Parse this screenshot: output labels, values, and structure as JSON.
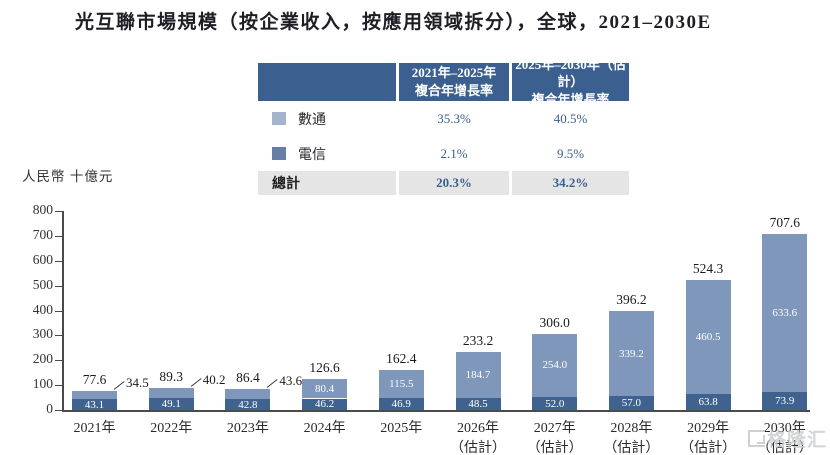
{
  "title": "光互聯市場規模（按企業收入，按應用領域拆分），全球，2021–2030E",
  "table": {
    "col_headers": [
      "2021年–2025年\n複合年增長率",
      "2025年–2030年（估計）\n複合年增長率"
    ],
    "rows": [
      {
        "label": "數通",
        "swatch_color": "#a4b4ce",
        "values": [
          "35.3%",
          "40.5%"
        ]
      },
      {
        "label": "電信",
        "swatch_color": "#667fa9",
        "values": [
          "2.1%",
          "9.5%"
        ]
      }
    ],
    "total_row": {
      "label": "總計",
      "values": [
        "20.3%",
        "34.2%"
      ]
    }
  },
  "chart_data": {
    "type": "bar",
    "stacked": true,
    "title": "光互聯市場規模（按企業收入，按應用領域拆分），全球，2021–2030E",
    "ylabel": "人民幣 十億元",
    "ylim": [
      0,
      800
    ],
    "yticks": [
      0,
      100,
      200,
      300,
      400,
      500,
      600,
      700,
      800
    ],
    "grid": false,
    "legend_position": "table-top",
    "categories": [
      "2021年",
      "2022年",
      "2023年",
      "2024年",
      "2025年",
      "2026年\n（估計）",
      "2027年\n（估計）",
      "2028年\n（估計）",
      "2029年\n（估計）",
      "2030年\n（估計）"
    ],
    "series": [
      {
        "name": "電信",
        "color": "#3f628f",
        "values": [
          43.1,
          49.1,
          42.8,
          46.2,
          46.9,
          48.5,
          52.0,
          57.0,
          63.8,
          73.9
        ]
      },
      {
        "name": "數通",
        "color": "#7f97bb",
        "values": [
          34.5,
          40.2,
          43.6,
          80.4,
          115.5,
          184.7,
          254.0,
          339.2,
          460.5,
          633.6
        ]
      }
    ],
    "totals": [
      77.6,
      89.3,
      86.4,
      126.6,
      162.4,
      233.2,
      306.0,
      396.2,
      524.3,
      707.6
    ]
  },
  "watermark": {
    "text": "格隆汇"
  }
}
